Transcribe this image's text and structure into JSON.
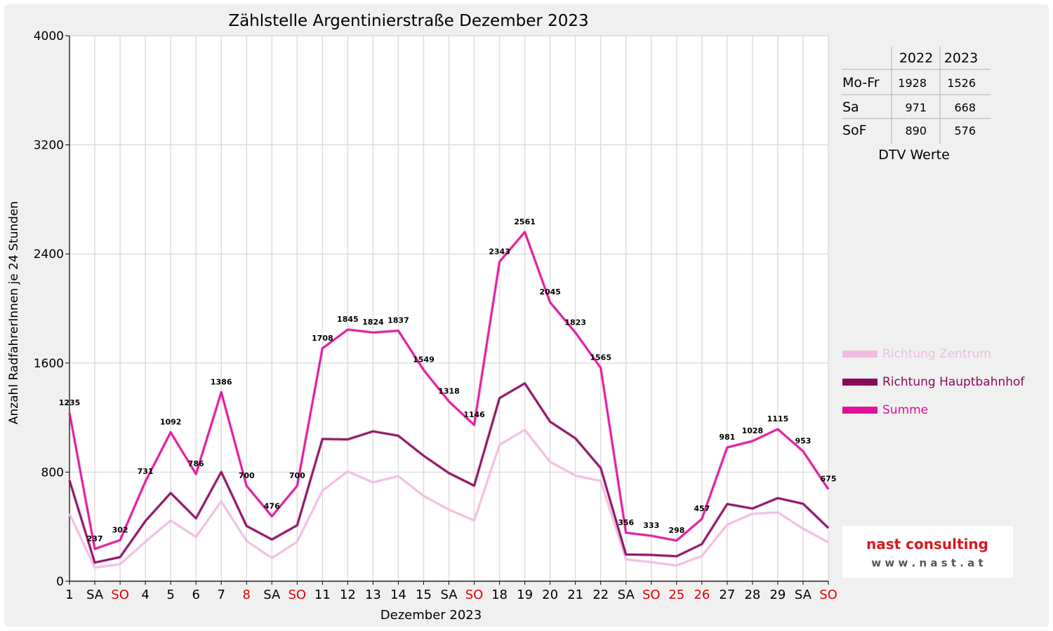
{
  "chart_data": {
    "type": "line",
    "title": "Zählstelle Argentinierstraße Dezember 2023",
    "xlabel": "Dezember 2023",
    "ylabel": "Anzahl RadfahrerInnen je 24 Stunden",
    "ylim": [
      0,
      4000
    ],
    "yticks": [
      0,
      800,
      1600,
      2400,
      3200,
      4000
    ],
    "grid": true,
    "legend_position": "right",
    "categories": [
      "1",
      "SA",
      "SO",
      "4",
      "5",
      "6",
      "7",
      "8",
      "SA",
      "SO",
      "11",
      "12",
      "13",
      "14",
      "15",
      "SA",
      "SO",
      "18",
      "19",
      "20",
      "21",
      "22",
      "SA",
      "SO",
      "25",
      "26",
      "27",
      "28",
      "29",
      "SA",
      "SO"
    ],
    "category_colors": [
      "#000000",
      "#000000",
      "#e00000",
      "#000000",
      "#000000",
      "#000000",
      "#000000",
      "#e00000",
      "#000000",
      "#e00000",
      "#000000",
      "#000000",
      "#000000",
      "#000000",
      "#000000",
      "#000000",
      "#e00000",
      "#000000",
      "#000000",
      "#000000",
      "#000000",
      "#000000",
      "#000000",
      "#e00000",
      "#e00000",
      "#e00000",
      "#000000",
      "#000000",
      "#000000",
      "#000000",
      "#e00000"
    ],
    "series": [
      {
        "name": "Richtung Zentrum",
        "color": "#f0bde0",
        "values": [
          495,
          100,
          125,
          290,
          445,
          325,
          585,
          295,
          170,
          290,
          665,
          805,
          725,
          770,
          625,
          525,
          445,
          1000,
          1110,
          875,
          775,
          735,
          160,
          140,
          115,
          185,
          415,
          495,
          505,
          385,
          285
        ]
      },
      {
        "name": "Richtung Hauptbahnhof",
        "color": "#8a0a5e",
        "values": [
          740,
          137,
          177,
          441,
          647,
          461,
          801,
          405,
          306,
          410,
          1043,
          1040,
          1099,
          1067,
          920,
          793,
          701,
          1343,
          1451,
          1170,
          1048,
          830,
          196,
          193,
          183,
          272,
          566,
          533,
          610,
          568,
          390
        ]
      },
      {
        "name": "Summe",
        "color": "#e0129a",
        "values": [
          1235,
          237,
          302,
          731,
          1092,
          786,
          1386,
          700,
          476,
          700,
          1708,
          1845,
          1824,
          1837,
          1549,
          1318,
          1146,
          2343,
          2561,
          2045,
          1823,
          1565,
          356,
          333,
          298,
          457,
          981,
          1028,
          1115,
          953,
          675
        ]
      }
    ]
  },
  "dtv_table": {
    "caption": "DTV Werte",
    "headers": [
      "",
      "2022",
      "2023"
    ],
    "rows": [
      {
        "label": "Mo-Fr",
        "v2022": "1928",
        "v2023": "1526"
      },
      {
        "label": "Sa",
        "v2022": "971",
        "v2023": "668"
      },
      {
        "label": "SoF",
        "v2022": "890",
        "v2023": "576"
      }
    ]
  },
  "logo": {
    "name": "nast consulting",
    "url_text": "w w w . n a s t . a t"
  }
}
